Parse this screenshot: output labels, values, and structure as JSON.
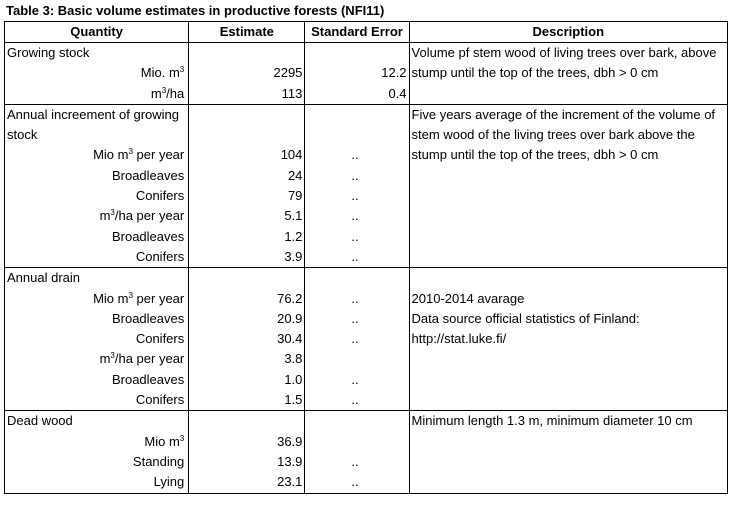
{
  "caption": "Table 3: Basic volume estimates in productive forests (NFI11)",
  "headers": {
    "quantity": "Quantity",
    "estimate": "Estimate",
    "standard_error": "Standard Error",
    "description": "Description"
  },
  "sections": [
    {
      "title": "Growing stock",
      "description": "Volume pf stem wood of living trees over bark, above stump until the top of the trees, dbh > 0 cm",
      "rows": [
        {
          "label_pre": "Mio. m",
          "sup": "3",
          "label_post": "",
          "estimate": "2295",
          "se": "12.2"
        },
        {
          "label_pre": "m",
          "sup": "3",
          "label_post": "/ha",
          "estimate": "113",
          "se": "0.4"
        }
      ]
    },
    {
      "title": "Annual increement of growing stock",
      "description": "Five years average of the increment of the volume of stem wood of the living trees over bark above the stump until the top of the trees, dbh > 0 cm",
      "rows": [
        {
          "label_pre": "Mio m",
          "sup": "3",
          "label_post": " per year",
          "estimate": "104",
          "se": ".."
        },
        {
          "label_pre": "Broadleaves",
          "sup": "",
          "label_post": "",
          "estimate": "24",
          "se": ".."
        },
        {
          "label_pre": "Conifers",
          "sup": "",
          "label_post": "",
          "estimate": "79",
          "se": ".."
        },
        {
          "label_pre": "m",
          "sup": "3",
          "label_post": "/ha per year",
          "estimate": "5.1",
          "se": ".."
        },
        {
          "label_pre": "Broadleaves",
          "sup": "",
          "label_post": "",
          "estimate": "1.2",
          "se": ".."
        },
        {
          "label_pre": "Conifers",
          "sup": "",
          "label_post": "",
          "estimate": "3.9",
          "se": ".."
        }
      ]
    },
    {
      "title": "Annual drain",
      "description_lines": [
        "2010-2014 avarage",
        "Data source official statistics of Finland:",
        "http://stat.luke.fi/"
      ],
      "rows": [
        {
          "label_pre": "Mio m",
          "sup": "3",
          "label_post": " per year",
          "estimate": "76.2",
          "se": ".."
        },
        {
          "label_pre": "Broadleaves",
          "sup": "",
          "label_post": "",
          "estimate": "20.9",
          "se": ".."
        },
        {
          "label_pre": "Conifers",
          "sup": "",
          "label_post": "",
          "estimate": "30.4",
          "se": ".."
        },
        {
          "label_pre": "m",
          "sup": "3",
          "label_post": "/ha per year",
          "estimate": "3.8",
          "se": ""
        },
        {
          "label_pre": "Broadleaves",
          "sup": "",
          "label_post": "",
          "estimate": "1.0",
          "se": ".."
        },
        {
          "label_pre": "Conifers",
          "sup": "",
          "label_post": "",
          "estimate": "1.5",
          "se": ".."
        }
      ]
    },
    {
      "title": "Dead wood",
      "description": "Minimum length 1.3 m, minimum diameter 10 cm",
      "rows": [
        {
          "label_pre": "Mio m",
          "sup": "3",
          "label_post": "",
          "estimate": "36.9",
          "se": ""
        },
        {
          "label_pre": "Standing",
          "sup": "",
          "label_post": "",
          "estimate": "13.9",
          "se": ".."
        },
        {
          "label_pre": "Lying",
          "sup": "",
          "label_post": "",
          "estimate": "23.1",
          "se": ".."
        }
      ]
    }
  ]
}
